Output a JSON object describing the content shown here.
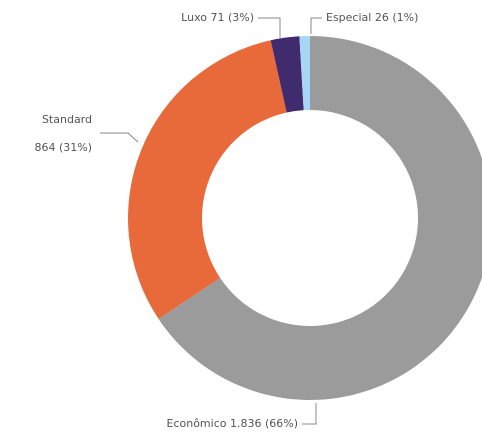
{
  "chart_data": {
    "type": "donut",
    "categories": [
      "Econômico",
      "Standard",
      "Luxo",
      "Especial"
    ],
    "values": [
      1836,
      864,
      71,
      26
    ],
    "labels": [
      [
        "Econômico 1.836 (66%)"
      ],
      [
        "Standard",
        "864 (31%)"
      ],
      [
        "Luxo 71 (3%)"
      ],
      [
        "Especial 26 (1%)"
      ]
    ],
    "colors": [
      "#9b9b9b",
      "#e8693a",
      "#3f2b6e",
      "#a9d5f7"
    ]
  }
}
